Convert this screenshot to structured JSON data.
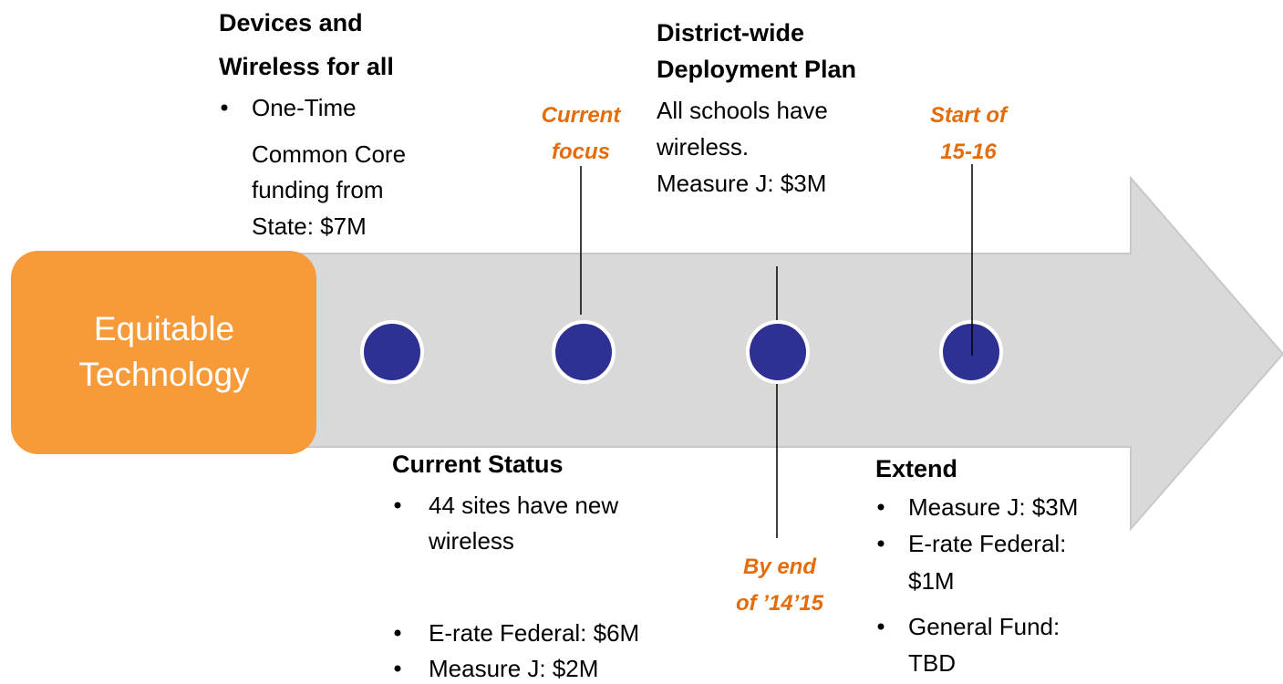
{
  "center": {
    "lines": [
      "Equitable",
      "Technology"
    ]
  },
  "stages": [
    {
      "heading": [
        "Devices and",
        "Wireless for all"
      ],
      "bullets": [
        [
          "One-Time",
          "Common Core",
          "funding from",
          "State: $7M"
        ]
      ]
    },
    {
      "heading": [
        "Current Status"
      ],
      "bullets": [
        [
          "44 sites have new",
          "wireless"
        ],
        [
          "E-rate Federal: $6M"
        ],
        [
          "Measure J: $2M"
        ]
      ]
    },
    {
      "heading": [
        "District-wide",
        "Deployment Plan"
      ],
      "lines": [
        "All schools have",
        "wireless.",
        "Measure J: $3M"
      ]
    },
    {
      "heading": [
        "Extend"
      ],
      "bullets": [
        [
          "Measure J: $3M"
        ],
        [
          "E-rate Federal:",
          "$1M"
        ],
        [
          "General Fund:",
          "TBD"
        ]
      ]
    }
  ],
  "callouts": [
    {
      "lines": [
        "Current",
        "focus"
      ]
    },
    {
      "lines": [
        "By end",
        "of ’14’15"
      ]
    },
    {
      "lines": [
        "Start of",
        "15-16"
      ]
    }
  ]
}
